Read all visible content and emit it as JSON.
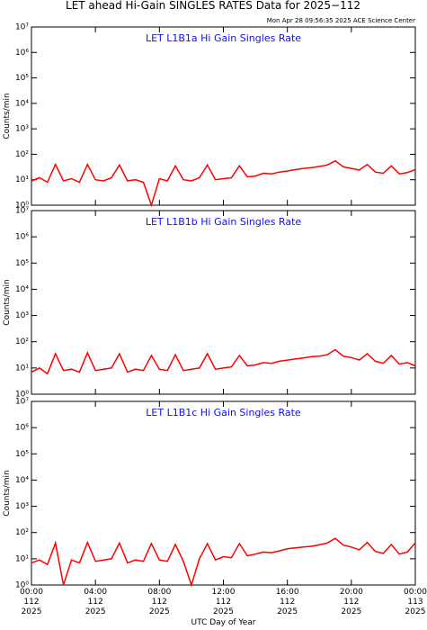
{
  "title": "LET ahead Hi-Gain SINGLES RATES Data for 2025−112",
  "subtitle": "Mon Apr 28 09:56:35 2025 ACE Science Center",
  "chart_data": [
    {
      "type": "line",
      "title": "LET L1B1a Hi Gain Singles Rate",
      "ylabel": "Counts/min",
      "log_scale": true,
      "color": "#ff0000",
      "x": [
        0,
        0.5,
        1,
        1.5,
        2,
        2.5,
        3,
        3.5,
        4,
        4.5,
        5,
        5.5,
        6,
        6.5,
        7,
        7.5,
        8,
        8.5,
        9,
        9.5,
        10,
        10.5,
        11,
        11.5,
        12,
        12.5,
        13,
        13.5,
        14,
        14.5,
        15,
        15.5,
        16,
        16.5,
        17,
        17.5,
        18,
        18.5,
        19,
        19.5,
        20,
        20.5,
        21,
        21.5,
        22,
        22.5,
        23,
        23.5,
        24
      ],
      "values": [
        9,
        12,
        8,
        40,
        9,
        11,
        8,
        40,
        10,
        9,
        12,
        38,
        9,
        10,
        8,
        1,
        11,
        9,
        35,
        10,
        9,
        12,
        38,
        10,
        11,
        12,
        35,
        13,
        14,
        18,
        17,
        20,
        22,
        25,
        28,
        30,
        33,
        38,
        55,
        32,
        28,
        24,
        40,
        20,
        18,
        35,
        17,
        19,
        25
      ],
      "xlim": [
        0,
        24
      ],
      "xticks": [
        0,
        4,
        8,
        12,
        16,
        20,
        24
      ],
      "ylim": [
        1,
        10000000
      ],
      "yticks": [
        {
          "value": 1,
          "label": "10⁰"
        },
        {
          "value": 10,
          "label": "10¹"
        },
        {
          "value": 100,
          "label": "10²"
        },
        {
          "value": 1000,
          "label": "10³"
        },
        {
          "value": 10000,
          "label": "10⁴"
        },
        {
          "value": 100000,
          "label": "10⁵"
        },
        {
          "value": 1000000,
          "label": "10⁶"
        },
        {
          "value": 10000000,
          "label": "10⁷"
        }
      ]
    },
    {
      "type": "line",
      "title": "LET L1B1b Hi Gain Singles Rate",
      "ylabel": "Counts/min",
      "log_scale": true,
      "color": "#ff0000",
      "x": [
        0,
        0.5,
        1,
        1.5,
        2,
        2.5,
        3,
        3.5,
        4,
        4.5,
        5,
        5.5,
        6,
        6.5,
        7,
        7.5,
        8,
        8.5,
        9,
        9.5,
        10,
        10.5,
        11,
        11.5,
        12,
        12.5,
        13,
        13.5,
        14,
        14.5,
        15,
        15.5,
        16,
        16.5,
        17,
        17.5,
        18,
        18.5,
        19,
        19.5,
        20,
        20.5,
        21,
        21.5,
        22,
        22.5,
        23,
        23.5,
        24
      ],
      "values": [
        7,
        10,
        6,
        35,
        8,
        9,
        7,
        38,
        8,
        9,
        10,
        35,
        7,
        9,
        8,
        30,
        9,
        8,
        32,
        8,
        9,
        10,
        35,
        9,
        10,
        11,
        30,
        12,
        13,
        16,
        15,
        18,
        20,
        22,
        24,
        27,
        28,
        32,
        50,
        28,
        25,
        20,
        35,
        18,
        15,
        30,
        14,
        16,
        12
      ],
      "xlim": [
        0,
        24
      ],
      "xticks": [
        0,
        4,
        8,
        12,
        16,
        20,
        24
      ],
      "ylim": [
        1,
        10000000
      ],
      "yticks": [
        {
          "value": 1,
          "label": "10⁰"
        },
        {
          "value": 10,
          "label": "10¹"
        },
        {
          "value": 100,
          "label": "10²"
        },
        {
          "value": 1000,
          "label": "10³"
        },
        {
          "value": 10000,
          "label": "10⁴"
        },
        {
          "value": 100000,
          "label": "10⁵"
        },
        {
          "value": 1000000,
          "label": "10⁶"
        },
        {
          "value": 10000000,
          "label": "10⁷"
        }
      ]
    },
    {
      "type": "line",
      "title": "LET L1B1c Hi Gain Singles Rate",
      "ylabel": "Counts/min",
      "xlabel": "UTC Day of Year",
      "log_scale": true,
      "color": "#ff0000",
      "x": [
        0,
        0.5,
        1,
        1.5,
        2,
        2.5,
        3,
        3.5,
        4,
        4.5,
        5,
        5.5,
        6,
        6.5,
        7,
        7.5,
        8,
        8.5,
        9,
        9.5,
        10,
        10.5,
        11,
        11.5,
        12,
        12.5,
        13,
        13.5,
        14,
        14.5,
        15,
        15.5,
        16,
        16.5,
        17,
        17.5,
        18,
        18.5,
        19,
        19.5,
        20,
        20.5,
        21,
        21.5,
        22,
        22.5,
        23,
        23.5,
        24
      ],
      "values": [
        7,
        9,
        6,
        40,
        1,
        9,
        7,
        42,
        8,
        9,
        10,
        40,
        7,
        9,
        8,
        38,
        9,
        8,
        35,
        8,
        1,
        10,
        38,
        9,
        12,
        11,
        38,
        13,
        15,
        18,
        17,
        20,
        24,
        26,
        28,
        30,
        34,
        40,
        60,
        33,
        28,
        22,
        42,
        19,
        16,
        35,
        15,
        18,
        40
      ],
      "xlim": [
        0,
        24
      ],
      "xticks": [
        {
          "value": 0,
          "label": "00:00\n112\n2025"
        },
        {
          "value": 4,
          "label": "04:00\n112\n2025"
        },
        {
          "value": 8,
          "label": "08:00\n112\n2025"
        },
        {
          "value": 12,
          "label": "12:00\n112\n2025"
        },
        {
          "value": 16,
          "label": "16:00\n112\n2025"
        },
        {
          "value": 20,
          "label": "20:00\n112\n2025"
        },
        {
          "value": 24,
          "label": "00:00\n113\n2025"
        }
      ],
      "ylim": [
        1,
        10000000
      ],
      "yticks": [
        {
          "value": 1,
          "label": "10⁰"
        },
        {
          "value": 10,
          "label": "10¹"
        },
        {
          "value": 100,
          "label": "10²"
        },
        {
          "value": 1000,
          "label": "10³"
        },
        {
          "value": 10000,
          "label": "10⁴"
        },
        {
          "value": 100000,
          "label": "10⁵"
        },
        {
          "value": 1000000,
          "label": "10⁶"
        },
        {
          "value": 10000000,
          "label": "10⁷"
        }
      ]
    }
  ]
}
